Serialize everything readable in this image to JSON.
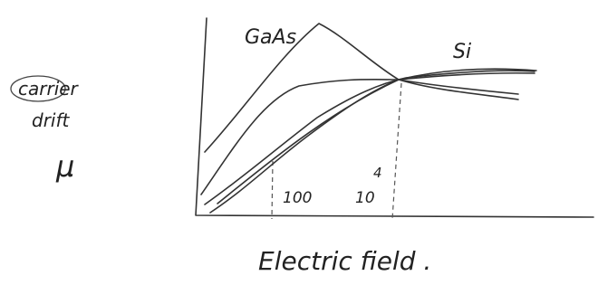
{
  "curves": [
    {
      "label": "GaAs"
    },
    {
      "label": "Si"
    }
  ],
  "y_axis": {
    "label_lines": [
      "carrier",
      "drift"
    ],
    "symbol": "μ"
  },
  "x_axis": {
    "label": "Electric field .",
    "marks": [
      {
        "base": "100"
      },
      {
        "base": "10",
        "exponent": "4"
      }
    ]
  }
}
